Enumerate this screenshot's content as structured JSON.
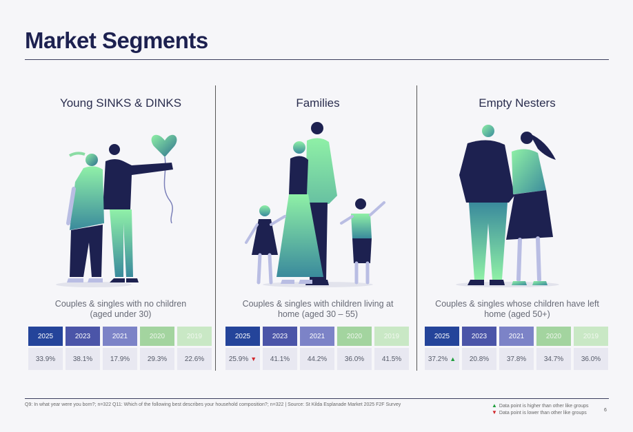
{
  "page": {
    "title": "Market Segments",
    "footnote": "Q9: In what year were you born?; n=322  Q11: Which of the following best describes your household composition?; n=322  | Source: St Kilda Esplanade Market 2025 F2F Survey",
    "legend_higher": "Data point is higher than other like groups",
    "legend_lower": "Data point is lower than other like groups",
    "page_number": "6"
  },
  "years": [
    "2025",
    "2023",
    "2021",
    "2020",
    "2019"
  ],
  "segments": [
    {
      "title": "Young SINKS & DINKS",
      "description_line1": "Couples & singles with no children",
      "description_line2": "(aged under 30)",
      "values": [
        "33.9%",
        "38.1%",
        "17.9%",
        "29.3%",
        "22.6%"
      ]
    },
    {
      "title": "Families",
      "description_line1": "Couples & singles with children living at",
      "description_line2": "home (aged 30 – 55)",
      "values": [
        "25.9%",
        "41.1%",
        "44.2%",
        "36.0%",
        "41.5%"
      ],
      "indicator_2025": "▼"
    },
    {
      "title": "Empty Nesters",
      "description_line1": "Couples & singles whose children have left",
      "description_line2": "home (aged 50+)",
      "values": [
        "37.2%",
        "20.8%",
        "37.8%",
        "34.7%",
        "36.0%"
      ],
      "indicator_2025": "▲"
    }
  ],
  "icons": {
    "higher": "▲",
    "lower": "▼",
    "illustrations": [
      "couple-with-balloon-illustration",
      "family-illustration",
      "elderly-couple-illustration"
    ]
  },
  "colors": {
    "navy": "#1d2150",
    "year_2025": "#24449a",
    "year_2023": "#4b55a8",
    "year_2021": "#7c83c7",
    "year_2020": "#a3d49f",
    "year_2019": "#c9e8c5",
    "higher": "#1e9e3c",
    "lower": "#d1262b"
  }
}
